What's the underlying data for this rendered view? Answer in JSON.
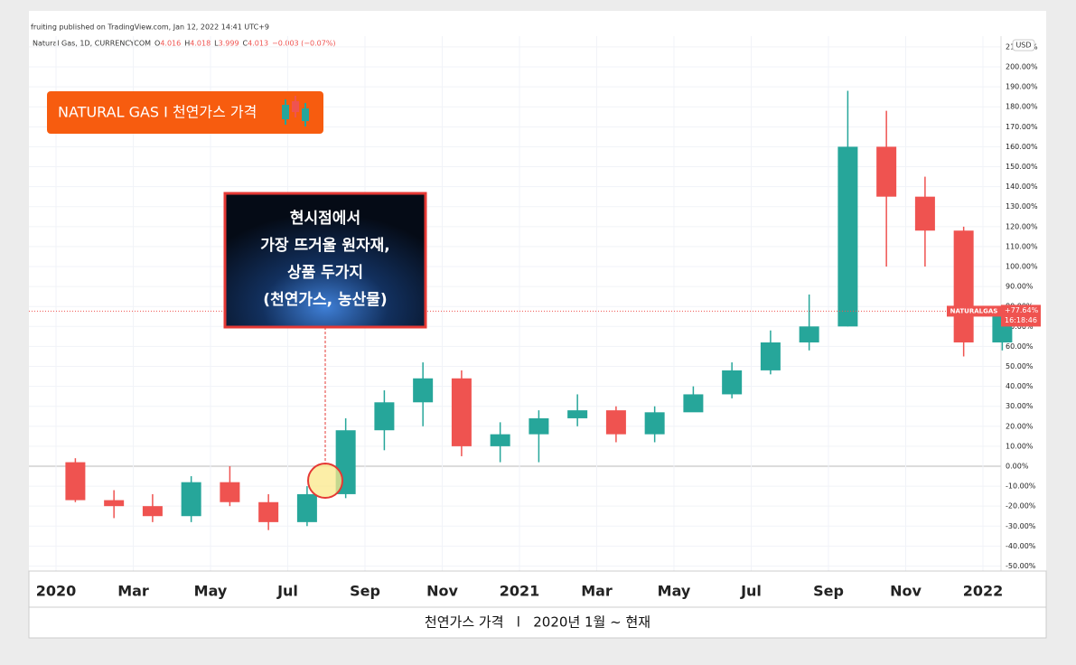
{
  "header": {
    "published": "fruiting published on TradingView.com, Jan 12, 2022 14:41 UTC+9",
    "symbol": "Natural Gas, 1D, CURRENCYCOM",
    "ohlc": [
      [
        "O",
        "4.016"
      ],
      [
        "H",
        "4.018"
      ],
      [
        "L",
        "3.999"
      ],
      [
        "C",
        "4.013"
      ]
    ],
    "change": "−0.003 (−0.07%)"
  },
  "badge": "NATURAL GAS I 천연가스 가격",
  "callout": [
    "현시점에서",
    "가장 뜨거울 원자재,",
    "상품 두가지",
    "(천연가스, 농산물)"
  ],
  "footer": "천연가스 가격   l   2020년 1월 ~ 현재",
  "chart_data": {
    "type": "candlestick",
    "x": [
      "2020-01",
      "2020-02",
      "2020-03",
      "2020-04",
      "2020-05",
      "2020-06",
      "2020-07",
      "2020-08",
      "2020-09",
      "2020-10",
      "2020-11",
      "2020-12",
      "2021-01",
      "2021-02",
      "2021-03",
      "2021-04",
      "2021-05",
      "2021-06",
      "2021-07",
      "2021-08",
      "2021-09",
      "2021-10",
      "2021-11",
      "2021-12",
      "2022-01"
    ],
    "open": [
      2,
      -17,
      -20,
      -25,
      -8,
      -18,
      -28,
      -14,
      18,
      32,
      44,
      10,
      16,
      24,
      28,
      16,
      27,
      36,
      48,
      62,
      70,
      160,
      135,
      118,
      62
    ],
    "high": [
      4,
      -12,
      -14,
      -5,
      0,
      -14,
      -10,
      24,
      38,
      52,
      48,
      22,
      28,
      36,
      30,
      30,
      40,
      52,
      68,
      86,
      188,
      178,
      145,
      120,
      78
    ],
    "low": [
      -18,
      -26,
      -28,
      -28,
      -20,
      -32,
      -30,
      -16,
      8,
      20,
      5,
      2,
      2,
      20,
      12,
      12,
      28,
      34,
      46,
      58,
      70,
      100,
      100,
      55,
      58
    ],
    "close": [
      -17,
      -20,
      -25,
      -8,
      -18,
      -28,
      -14,
      18,
      32,
      44,
      10,
      16,
      24,
      28,
      16,
      27,
      36,
      48,
      62,
      70,
      160,
      135,
      118,
      62,
      77.64
    ],
    "up_color": "#26a69a",
    "down_color": "#ef5350",
    "last_label": "+77.64%",
    "last_name": "NATURALGAS",
    "last_time": "16:18:46",
    "currency": "USD",
    "ylim": [
      -52.5,
      215.4
    ],
    "yticks": [
      {
        "value": -50,
        "label": "-50.00%"
      },
      {
        "value": -40,
        "label": "-40.00%"
      },
      {
        "value": -30,
        "label": "-30.00%"
      },
      {
        "value": -20,
        "label": "-20.00%"
      },
      {
        "value": -10,
        "label": "-10.00%"
      },
      {
        "value": 0,
        "label": "0.00%"
      },
      {
        "value": 10,
        "label": "10.00%"
      },
      {
        "value": 20,
        "label": "20.00%"
      },
      {
        "value": 30,
        "label": "30.00%"
      },
      {
        "value": 40,
        "label": "40.00%"
      },
      {
        "value": 50,
        "label": "50.00%"
      },
      {
        "value": 60,
        "label": "60.00%"
      },
      {
        "value": 70,
        "label": "70.00%"
      },
      {
        "value": 80,
        "label": "80.00%"
      },
      {
        "value": 90,
        "label": "90.00%"
      },
      {
        "value": 100,
        "label": "100.00%"
      },
      {
        "value": 110,
        "label": "110.00%"
      },
      {
        "value": 120,
        "label": "120.00%"
      },
      {
        "value": 130,
        "label": "130.00%"
      },
      {
        "value": 140,
        "label": "140.00%"
      },
      {
        "value": 150,
        "label": "150.00%"
      },
      {
        "value": 160,
        "label": "160.00%"
      },
      {
        "value": 170,
        "label": "170.00%"
      },
      {
        "value": 180,
        "label": "180.00%"
      },
      {
        "value": 190,
        "label": "190.00%"
      },
      {
        "value": 200,
        "label": "200.00%"
      },
      {
        "value": 210,
        "label": "210.00%"
      }
    ],
    "xticks": [
      {
        "value": "2020-01",
        "label": "2020"
      },
      {
        "value": "2020-03",
        "label": "Mar"
      },
      {
        "value": "2020-05",
        "label": "May"
      },
      {
        "value": "2020-07",
        "label": "Jul"
      },
      {
        "value": "2020-09",
        "label": "Sep"
      },
      {
        "value": "2020-11",
        "label": "Nov"
      },
      {
        "value": "2021-01",
        "label": "2021"
      },
      {
        "value": "2021-03",
        "label": "Mar"
      },
      {
        "value": "2021-05",
        "label": "May"
      },
      {
        "value": "2021-07",
        "label": "Jul"
      },
      {
        "value": "2021-09",
        "label": "Sep"
      },
      {
        "value": "2021-11",
        "label": "Nov"
      },
      {
        "value": "2022-01",
        "label": "2022"
      }
    ],
    "grid": true
  }
}
